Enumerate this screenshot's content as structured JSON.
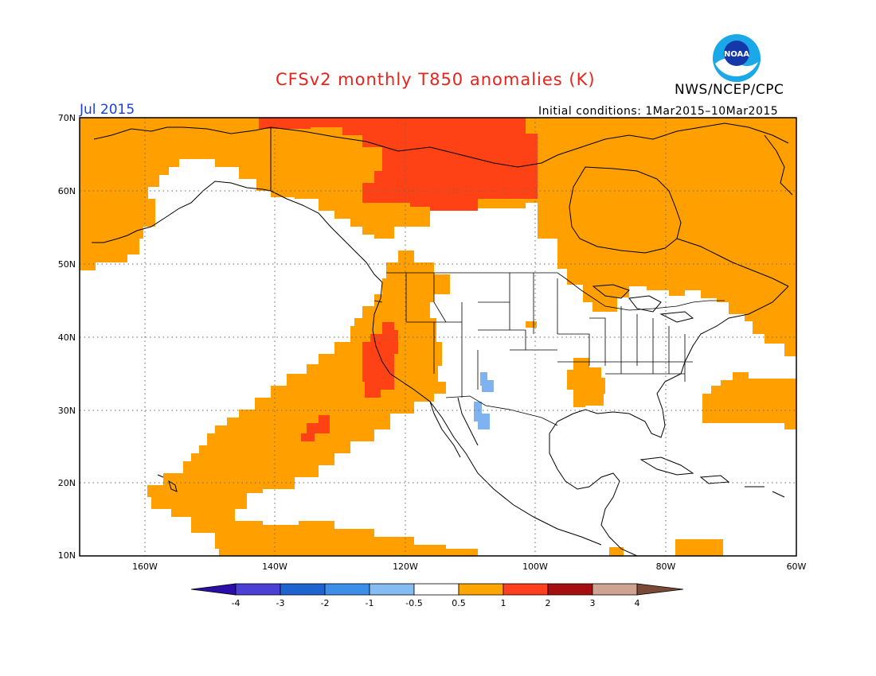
{
  "header": {
    "title": "CFSv2 monthly T850 anomalies (K)",
    "agency": "NWS/NCEP/CPC",
    "logo_text": "NOAA",
    "month": "Jul 2015",
    "initial_conditions": "Initial conditions: 1Mar2015–10Mar2015"
  },
  "map": {
    "lon_range": [
      -172,
      -60
    ],
    "lat_range": [
      10,
      70
    ],
    "lat_labels": [
      "70N",
      "60N",
      "50N",
      "40N",
      "30N",
      "20N",
      "10N"
    ],
    "lon_labels": [
      "160W",
      "140W",
      "120W",
      "100W",
      "80W",
      "60W"
    ],
    "gridlines": "dotted"
  },
  "colorbar": {
    "labels": [
      "-4",
      "-3",
      "-2",
      "-1",
      "-0.5",
      "0.5",
      "1",
      "2",
      "3",
      "4"
    ],
    "colors": [
      "#2b0ea6",
      "#4b3fd4",
      "#1f63cf",
      "#3d8ee8",
      "#85bcf2",
      "#ffffff",
      "#ffa500",
      "#ff3f1e",
      "#a50f0f",
      "#cea38f",
      "#7a4a37"
    ]
  },
  "colors": {
    "orange": "#ffa000",
    "red_orange": "#ff4216",
    "light_blue": "#7fb2f0"
  }
}
